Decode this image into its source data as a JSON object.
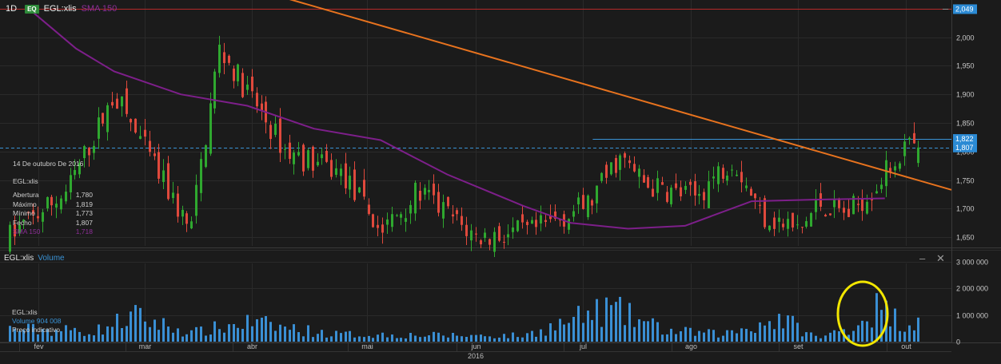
{
  "header": {
    "timeframe": "1D",
    "exchange_badge": "EQ",
    "symbol": "EGL:xlis",
    "indicator": "SMA 150"
  },
  "info_panel": {
    "date": "14 De outubro De 2016",
    "symbol": "EGL:xlis",
    "rows": [
      {
        "label": "Abertura",
        "value": "1,780"
      },
      {
        "label": "Máximo",
        "value": "1,819"
      },
      {
        "label": "Mínimo",
        "value": "1,773"
      },
      {
        "label": "Fecho",
        "value": "1,807"
      },
      {
        "label": "SMA 150",
        "value": "1,718"
      }
    ]
  },
  "price_labels": {
    "resistance": "2,049",
    "last_high": "1,822",
    "last_close": "1,807"
  },
  "volume_panel": {
    "symbol": "EGL:xlis",
    "title": "Volume",
    "volume_label": "Volume",
    "volume_value": "904 008",
    "price_mode": "Preço indicativo"
  },
  "year_label": "2016",
  "colors": {
    "background": "#1b1b1b",
    "up_candle": "#2fa82f",
    "down_candle": "#e0493c",
    "sma": "#7d1f8a",
    "trendline": "#e8731e",
    "resistance": "#b52a2a",
    "volume": "#3a8fd4",
    "highlight_circle": "#f2e600",
    "price_tag": "#2b8ad4"
  },
  "icons": [
    "minimize-icon",
    "close-icon"
  ],
  "chart_data": [
    {
      "type": "candlestick",
      "symbol": "EGL:xlis",
      "y_axis": {
        "ticks": [
          "2,000",
          "1,950",
          "1,900",
          "1,850",
          "1,800",
          "1,750",
          "1,700",
          "1,650"
        ],
        "range": [
          1.635,
          2.065
        ]
      },
      "x_axis": {
        "ticks": [
          "fev",
          "mar",
          "abr",
          "mai",
          "jun",
          "jul",
          "ago",
          "set",
          "out"
        ]
      },
      "indicator": "SMA 150",
      "horizontal_lines": [
        {
          "value": 2.049,
          "label": "2,049",
          "style": "solid",
          "color": "#b52a2a"
        },
        {
          "value": 1.822,
          "label": "1,822",
          "style": "solid",
          "color": "#3a93d6",
          "from_month": "jul"
        },
        {
          "value": 1.807,
          "label": "1,807",
          "style": "dashed",
          "color": "#3a93d6"
        }
      ],
      "trendline": {
        "from": {
          "month": "jan",
          "value": 2.07
        },
        "to": {
          "month": "out",
          "value": 1.733
        }
      },
      "sma_path": [
        {
          "t": 0.03,
          "v": 2.05
        },
        {
          "t": 0.08,
          "v": 1.98
        },
        {
          "t": 0.12,
          "v": 1.94
        },
        {
          "t": 0.19,
          "v": 1.9
        },
        {
          "t": 0.26,
          "v": 1.88
        },
        {
          "t": 0.33,
          "v": 1.84
        },
        {
          "t": 0.4,
          "v": 1.82
        },
        {
          "t": 0.47,
          "v": 1.76
        },
        {
          "t": 0.55,
          "v": 1.705
        },
        {
          "t": 0.6,
          "v": 1.675
        },
        {
          "t": 0.66,
          "v": 1.665
        },
        {
          "t": 0.72,
          "v": 1.67
        },
        {
          "t": 0.79,
          "v": 1.713
        },
        {
          "t": 0.86,
          "v": 1.716
        },
        {
          "t": 0.93,
          "v": 1.718
        }
      ],
      "price_path": [
        {
          "t": 0.0,
          "v": 1.64
        },
        {
          "t": 0.07,
          "v": 1.73
        },
        {
          "t": 0.12,
          "v": 1.9
        },
        {
          "t": 0.16,
          "v": 1.78
        },
        {
          "t": 0.2,
          "v": 1.66
        },
        {
          "t": 0.23,
          "v": 1.98
        },
        {
          "t": 0.25,
          "v": 1.93
        },
        {
          "t": 0.3,
          "v": 1.8
        },
        {
          "t": 0.36,
          "v": 1.76
        },
        {
          "t": 0.4,
          "v": 1.66
        },
        {
          "t": 0.44,
          "v": 1.73
        },
        {
          "t": 0.5,
          "v": 1.65
        },
        {
          "t": 0.56,
          "v": 1.66
        },
        {
          "t": 0.62,
          "v": 1.71
        },
        {
          "t": 0.65,
          "v": 1.79
        },
        {
          "t": 0.68,
          "v": 1.74
        },
        {
          "t": 0.73,
          "v": 1.72
        },
        {
          "t": 0.77,
          "v": 1.79
        },
        {
          "t": 0.8,
          "v": 1.69
        },
        {
          "t": 0.84,
          "v": 1.66
        },
        {
          "t": 0.86,
          "v": 1.71
        },
        {
          "t": 0.89,
          "v": 1.69
        },
        {
          "t": 0.92,
          "v": 1.74
        },
        {
          "t": 0.95,
          "v": 1.807
        }
      ]
    },
    {
      "type": "bar",
      "series": [
        {
          "name": "Volume",
          "unit": "shares"
        }
      ],
      "y_axis": {
        "ticks": [
          "3 000 000",
          "2 000 000",
          "1 000 000",
          "0"
        ],
        "range": [
          0,
          3000000
        ]
      },
      "profile": [
        {
          "t": 0.0,
          "v": 600000
        },
        {
          "t": 0.1,
          "v": 500000
        },
        {
          "t": 0.14,
          "v": 1200000
        },
        {
          "t": 0.2,
          "v": 400000
        },
        {
          "t": 0.26,
          "v": 900000
        },
        {
          "t": 0.35,
          "v": 350000
        },
        {
          "t": 0.45,
          "v": 300000
        },
        {
          "t": 0.55,
          "v": 280000
        },
        {
          "t": 0.64,
          "v": 1550000
        },
        {
          "t": 0.7,
          "v": 500000
        },
        {
          "t": 0.76,
          "v": 350000
        },
        {
          "t": 0.82,
          "v": 1100000
        },
        {
          "t": 0.86,
          "v": 150000
        },
        {
          "t": 0.9,
          "v": 800000
        },
        {
          "t": 0.92,
          "v": 1600000
        },
        {
          "t": 0.95,
          "v": 904008
        }
      ],
      "highlight": "last sessions circled"
    }
  ]
}
